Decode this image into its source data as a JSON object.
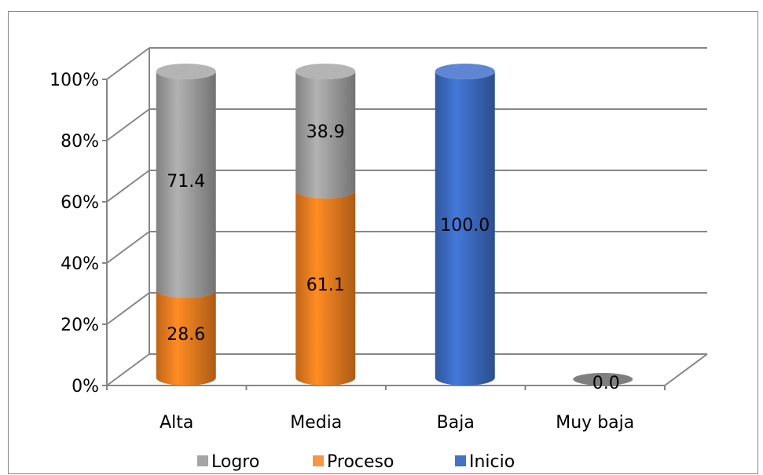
{
  "chart_data": {
    "type": "bar",
    "stacked": true,
    "percent_stacked": true,
    "style": "3d-cylinder",
    "title": "",
    "xlabel": "",
    "ylabel": "",
    "categories": [
      "Alta",
      "Media",
      "Baja",
      "Muy baja"
    ],
    "series": [
      {
        "name": "Inicio",
        "values": [
          0,
          0,
          100.0,
          0
        ],
        "labels": [
          "",
          "",
          "100.0",
          "0.0"
        ]
      },
      {
        "name": "Proceso",
        "values": [
          28.6,
          61.1,
          0,
          0
        ],
        "labels": [
          "28.6",
          "61.1",
          "",
          ""
        ]
      },
      {
        "name": "Logro",
        "values": [
          71.4,
          38.9,
          0,
          0
        ],
        "labels": [
          "71.4",
          "38.9",
          "",
          ""
        ]
      }
    ],
    "y_ticks": [
      "0%",
      "20%",
      "40%",
      "60%",
      "80%",
      "100%"
    ],
    "ylim": [
      0,
      100
    ],
    "grid": true,
    "legend_position": "bottom",
    "legend": [
      {
        "name": "Logro",
        "color": "#A5A5A5"
      },
      {
        "name": "Proceso",
        "color": "#F79646"
      },
      {
        "name": "Inicio",
        "color": "#4472C4"
      }
    ],
    "colors": {
      "Logro": "#A5A5A5",
      "Proceso": "#F58220",
      "Inicio": "#3F6FC9",
      "grid": "#868686",
      "zero_marker": "#7F7F7F"
    }
  }
}
